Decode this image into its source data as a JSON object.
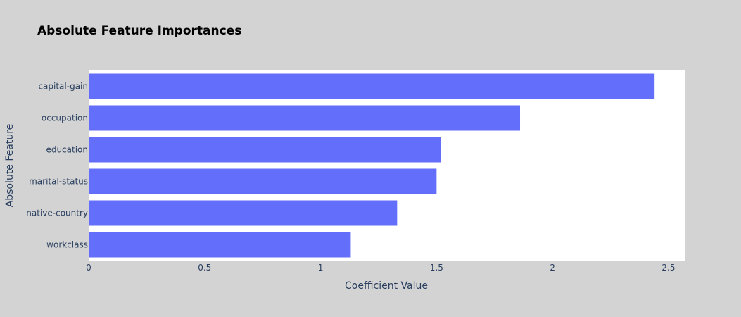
{
  "chart_data": {
    "type": "bar",
    "orientation": "horizontal",
    "title": "Absolute Feature Importances",
    "xlabel": "Coefficient Value",
    "ylabel": "Absolute Feature",
    "categories": [
      "capital-gain",
      "occupation",
      "education",
      "marital-status",
      "native-country",
      "workclass"
    ],
    "values": [
      2.44,
      1.86,
      1.52,
      1.5,
      1.33,
      1.13
    ],
    "xlim": [
      0,
      2.57
    ],
    "xticks": [
      0,
      0.5,
      1,
      1.5,
      2,
      2.5
    ],
    "xtick_labels": [
      "0",
      "0.5",
      "1",
      "1.5",
      "2",
      "2.5"
    ],
    "grid": false,
    "bar_color": "#636efa",
    "plot_background": "#ffffff",
    "paper_background": "#d3d3d3"
  }
}
